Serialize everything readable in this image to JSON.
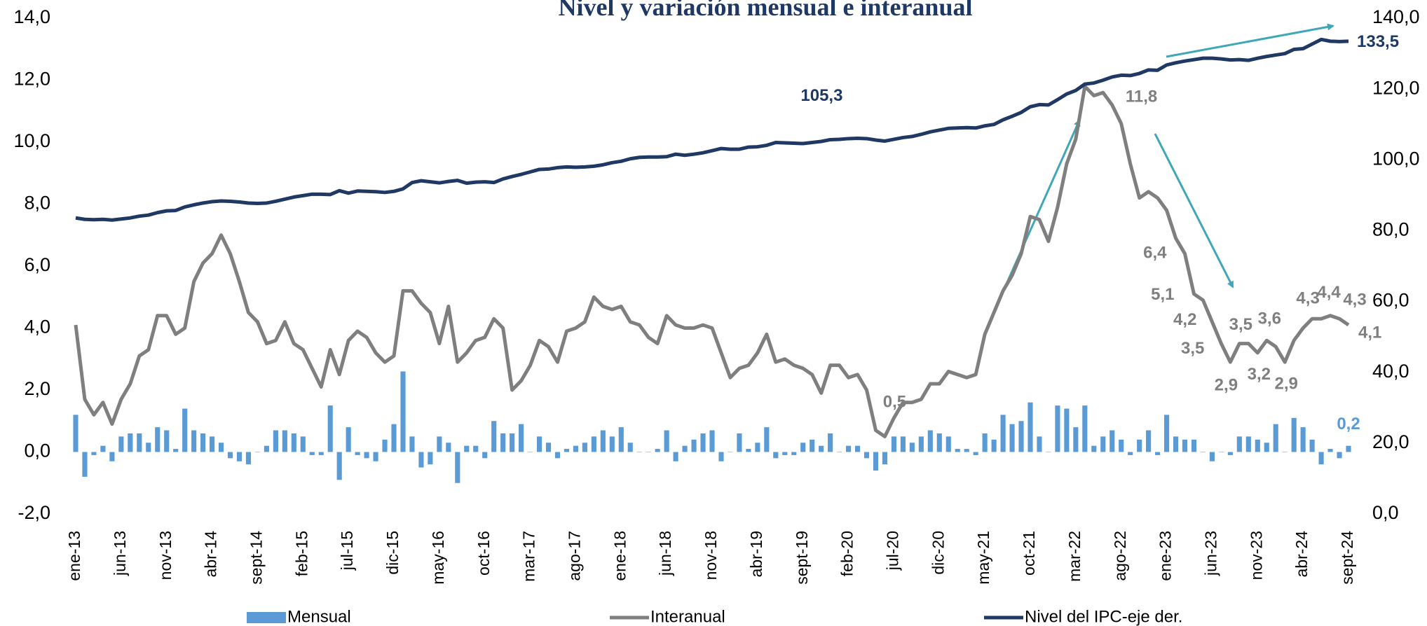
{
  "chart_data": {
    "type": "combo",
    "title": "Nivel y variación mensual e interanual",
    "categories": [
      "ene-13",
      null,
      null,
      null,
      null,
      "jun-13",
      null,
      null,
      null,
      null,
      "nov-13",
      null,
      null,
      null,
      null,
      "abr-14",
      null,
      null,
      null,
      null,
      "sept-14",
      null,
      null,
      null,
      null,
      "feb-15",
      null,
      null,
      null,
      null,
      "jul-15",
      null,
      null,
      null,
      null,
      "dic-15",
      null,
      null,
      null,
      null,
      "may-16",
      null,
      null,
      null,
      null,
      "oct-16",
      null,
      null,
      null,
      null,
      "mar-17",
      null,
      null,
      null,
      null,
      "ago-17",
      null,
      null,
      null,
      null,
      "ene-18",
      null,
      null,
      null,
      null,
      "jun-18",
      null,
      null,
      null,
      null,
      "nov-18",
      null,
      null,
      null,
      null,
      "abr-19",
      null,
      null,
      null,
      null,
      "sept-19",
      null,
      null,
      null,
      null,
      "feb-20",
      null,
      null,
      null,
      null,
      "jul-20",
      null,
      null,
      null,
      null,
      "dic-20",
      null,
      null,
      null,
      null,
      "may-21",
      null,
      null,
      null,
      null,
      "oct-21",
      null,
      null,
      null,
      null,
      "mar-22",
      null,
      null,
      null,
      null,
      "ago-22",
      null,
      null,
      null,
      null,
      "ene-23",
      null,
      null,
      null,
      null,
      "jun-23",
      null,
      null,
      null,
      null,
      "nov-23",
      null,
      null,
      null,
      null,
      "abr-24",
      null,
      null,
      null,
      null,
      "sept-24"
    ],
    "series": [
      {
        "name": "Mensual",
        "type": "bar",
        "color": "#5b9bd5",
        "values": [
          1.2,
          -0.8,
          -0.1,
          0.2,
          -0.3,
          0.5,
          0.6,
          0.6,
          0.3,
          0.8,
          0.7,
          0.1,
          1.4,
          0.7,
          0.6,
          0.5,
          0.3,
          -0.2,
          -0.3,
          -0.4,
          0.0,
          0.2,
          0.7,
          0.7,
          0.6,
          0.5,
          -0.1,
          -0.1,
          1.5,
          -0.9,
          0.8,
          -0.1,
          -0.2,
          -0.3,
          0.4,
          0.9,
          2.6,
          0.5,
          -0.5,
          -0.4,
          0.5,
          0.3,
          -1.0,
          0.2,
          0.2,
          -0.2,
          1.0,
          0.6,
          0.6,
          0.9,
          0.0,
          0.5,
          0.3,
          -0.2,
          0.1,
          0.2,
          0.3,
          0.5,
          0.7,
          0.5,
          0.8,
          0.3,
          0.0,
          0.0,
          0.1,
          0.7,
          -0.3,
          0.2,
          0.4,
          0.6,
          0.7,
          -0.3,
          0.0,
          0.6,
          0.1,
          0.3,
          0.8,
          -0.2,
          -0.1,
          -0.1,
          0.3,
          0.4,
          0.2,
          0.6,
          0.0,
          0.2,
          0.2,
          -0.2,
          -0.6,
          -0.4,
          0.5,
          0.5,
          0.3,
          0.5,
          0.7,
          0.6,
          0.5,
          0.1,
          0.1,
          -0.1,
          0.6,
          0.4,
          1.2,
          0.9,
          1.0,
          1.6,
          0.5,
          0.0,
          1.5,
          1.4,
          0.8,
          1.5,
          0.2,
          0.5,
          0.7,
          0.4,
          -0.1,
          0.4,
          0.7,
          -0.1,
          1.2,
          0.5,
          0.4,
          0.4,
          0.0,
          -0.3,
          0.0,
          -0.1,
          0.5,
          0.5,
          0.4,
          0.3,
          0.9,
          0.0,
          1.1,
          0.8,
          0.4,
          -0.4,
          0.1,
          -0.2,
          0.2
        ],
        "value_labels": [
          null,
          null,
          null,
          null,
          null,
          null,
          null,
          null,
          null,
          null,
          null,
          null,
          null,
          null,
          null,
          null,
          null,
          null,
          null,
          null,
          null,
          null,
          null,
          null,
          null,
          null,
          null,
          null,
          null,
          null,
          null,
          null,
          null,
          null,
          null,
          null,
          null,
          null,
          null,
          null,
          null,
          null,
          null,
          null,
          null,
          null,
          null,
          null,
          null,
          null,
          null,
          null,
          null,
          null,
          null,
          null,
          null,
          null,
          null,
          null,
          null,
          null,
          null,
          null,
          null,
          null,
          null,
          null,
          null,
          null,
          null,
          null,
          null,
          null,
          null,
          null,
          null,
          null,
          null,
          null,
          null,
          null,
          null,
          null,
          null,
          null,
          null,
          null,
          null,
          null,
          null,
          null,
          null,
          null,
          null,
          null,
          null,
          null,
          null,
          null,
          null,
          null,
          null,
          null,
          null,
          null,
          null,
          null,
          null,
          null,
          null,
          null,
          null,
          null,
          null,
          null,
          null,
          null,
          null,
          null,
          null,
          null,
          null,
          null,
          null,
          null,
          null,
          null,
          null,
          null,
          null,
          null,
          null,
          null,
          null,
          null,
          null,
          null,
          null,
          null,
          "0,2"
        ]
      },
      {
        "name": "Interanual",
        "type": "line",
        "color": "#7f7f7f",
        "values": [
          4.1,
          1.7,
          1.2,
          1.6,
          0.9,
          1.7,
          2.2,
          3.1,
          3.3,
          4.4,
          4.4,
          3.8,
          4.0,
          5.5,
          6.1,
          6.4,
          7.0,
          6.4,
          5.5,
          4.5,
          4.2,
          3.5,
          3.6,
          4.2,
          3.5,
          3.3,
          2.7,
          2.1,
          3.3,
          2.5,
          3.6,
          3.9,
          3.7,
          3.2,
          2.9,
          3.1,
          5.2,
          5.2,
          4.8,
          4.5,
          3.5,
          4.7,
          2.9,
          3.2,
          3.6,
          3.7,
          4.3,
          4.0,
          2.0,
          2.3,
          2.8,
          3.6,
          3.4,
          2.9,
          3.9,
          4.0,
          4.2,
          5.0,
          4.7,
          4.6,
          4.7,
          4.2,
          4.1,
          3.7,
          3.5,
          4.4,
          4.1,
          4.0,
          4.0,
          4.1,
          4.0,
          3.2,
          2.4,
          2.7,
          2.8,
          3.2,
          3.8,
          2.9,
          3.0,
          2.8,
          2.7,
          2.5,
          1.9,
          2.8,
          2.8,
          2.4,
          2.5,
          2.0,
          0.7,
          0.5,
          1.1,
          1.6,
          1.6,
          1.7,
          2.2,
          2.2,
          2.6,
          2.5,
          2.4,
          2.5,
          3.8,
          4.5,
          5.2,
          5.7,
          6.4,
          7.6,
          7.5,
          6.8,
          7.9,
          9.3,
          10.1,
          11.8,
          11.5,
          11.6,
          11.2,
          10.6,
          9.3,
          8.2,
          8.4,
          8.2,
          7.8,
          6.9,
          6.4,
          5.1,
          4.9,
          4.2,
          3.5,
          2.9,
          3.5,
          3.5,
          3.2,
          3.6,
          3.4,
          2.9,
          3.6,
          4.0,
          4.3,
          4.3,
          4.4,
          4.3,
          4.1
        ],
        "value_labels": [
          null,
          null,
          null,
          null,
          null,
          null,
          null,
          null,
          null,
          null,
          null,
          null,
          null,
          null,
          null,
          null,
          null,
          null,
          null,
          null,
          null,
          null,
          null,
          null,
          null,
          null,
          null,
          null,
          null,
          null,
          null,
          null,
          null,
          null,
          null,
          null,
          null,
          null,
          null,
          null,
          null,
          null,
          null,
          null,
          null,
          null,
          null,
          null,
          null,
          null,
          null,
          null,
          null,
          null,
          null,
          null,
          null,
          null,
          null,
          null,
          null,
          null,
          null,
          null,
          null,
          null,
          null,
          null,
          null,
          null,
          null,
          null,
          null,
          null,
          null,
          null,
          null,
          null,
          null,
          null,
          null,
          null,
          null,
          null,
          null,
          null,
          null,
          null,
          null,
          "0,5",
          null,
          null,
          null,
          null,
          null,
          null,
          null,
          null,
          null,
          null,
          null,
          null,
          null,
          null,
          null,
          null,
          null,
          null,
          null,
          null,
          null,
          "11,8",
          null,
          null,
          null,
          null,
          null,
          null,
          null,
          null,
          null,
          null,
          "6,4",
          "5,1",
          null,
          "4,2",
          "3,5",
          "2,9",
          "3,5",
          null,
          "3,2",
          "3,6",
          null,
          "2,9",
          null,
          null,
          "4,3",
          null,
          "4,4",
          "4,3",
          "4,1"
        ]
      },
      {
        "name": "Nivel del IPC-eje der.",
        "type": "line",
        "axis": "y2",
        "color": "#1f3864",
        "values": [
          83.6,
          83.2,
          83.1,
          83.2,
          83.0,
          83.3,
          83.6,
          84.1,
          84.4,
          85.1,
          85.6,
          85.7,
          86.7,
          87.3,
          87.8,
          88.2,
          88.4,
          88.3,
          88.1,
          87.8,
          87.7,
          87.8,
          88.3,
          88.9,
          89.5,
          89.9,
          90.3,
          90.3,
          90.2,
          91.3,
          90.6,
          91.2,
          91.1,
          91.0,
          90.8,
          91.1,
          91.8,
          93.6,
          94.1,
          93.8,
          93.5,
          93.9,
          94.2,
          93.4,
          93.7,
          93.8,
          93.6,
          94.6,
          95.3,
          95.9,
          96.6,
          97.3,
          97.4,
          97.8,
          98.0,
          97.9,
          98.0,
          98.2,
          98.6,
          99.2,
          99.6,
          100.3,
          100.7,
          100.8,
          100.8,
          100.9,
          101.6,
          101.3,
          101.6,
          102.0,
          102.6,
          103.2,
          103.0,
          103.0,
          103.6,
          103.7,
          104.1,
          104.9,
          104.8,
          104.7,
          104.6,
          104.9,
          105.2,
          105.7,
          105.8,
          106.0,
          106.1,
          106.0,
          105.6,
          105.3,
          105.8,
          106.3,
          106.6,
          107.2,
          107.9,
          108.4,
          108.9,
          109.0,
          109.1,
          109.0,
          109.6,
          110.0,
          111.3,
          112.3,
          113.4,
          115.0,
          115.6,
          115.5,
          117.0,
          118.6,
          119.6,
          121.4,
          121.7,
          122.5,
          123.4,
          123.9,
          123.8,
          124.4,
          125.4,
          125.3,
          126.8,
          127.4,
          127.9,
          128.3,
          128.7,
          128.7,
          128.5,
          128.2,
          128.3,
          128.1,
          128.7,
          129.2,
          129.6,
          130.0,
          131.2,
          131.4,
          132.7,
          134.0,
          133.5,
          133.4,
          133.5
        ],
        "value_labels": [
          null,
          null,
          null,
          null,
          null,
          null,
          null,
          null,
          null,
          null,
          null,
          null,
          null,
          null,
          null,
          null,
          null,
          null,
          null,
          null,
          null,
          null,
          null,
          null,
          null,
          null,
          null,
          null,
          null,
          null,
          null,
          null,
          null,
          null,
          null,
          null,
          null,
          null,
          null,
          null,
          null,
          null,
          null,
          null,
          null,
          null,
          null,
          null,
          null,
          null,
          null,
          null,
          null,
          null,
          null,
          null,
          null,
          null,
          null,
          null,
          null,
          null,
          null,
          null,
          null,
          null,
          null,
          null,
          null,
          null,
          null,
          null,
          null,
          null,
          null,
          null,
          null,
          null,
          null,
          null,
          null,
          null,
          null,
          null,
          null,
          null,
          null,
          null,
          null,
          "105,3",
          null,
          null,
          null,
          null,
          null,
          null,
          null,
          null,
          null,
          null,
          null,
          null,
          null,
          null,
          null,
          null,
          null,
          null,
          null,
          null,
          null,
          null,
          null,
          null,
          null,
          null,
          null,
          null,
          null,
          null,
          null,
          null,
          null,
          null,
          null,
          null,
          null,
          null,
          null,
          null,
          null,
          null,
          null,
          null,
          null,
          null,
          null,
          null,
          null,
          null,
          "133,5"
        ]
      }
    ],
    "ylim": [
      -2,
      14
    ],
    "yticks": [
      {
        "value": -2,
        "label": "-2,0"
      },
      {
        "value": 0,
        "label": "0,0"
      },
      {
        "value": 2,
        "label": "2,0"
      },
      {
        "value": 4,
        "label": "4,0"
      },
      {
        "value": 6,
        "label": "6,0"
      },
      {
        "value": 8,
        "label": "8,0"
      },
      {
        "value": 10,
        "label": "10,0"
      },
      {
        "value": 12,
        "label": "12,0"
      },
      {
        "value": 14,
        "label": "14,0"
      }
    ],
    "y2lim": [
      0,
      140
    ],
    "y2ticks": [
      {
        "value": 0,
        "label": "0,0"
      },
      {
        "value": 20,
        "label": "20,0"
      },
      {
        "value": 40,
        "label": "40,0"
      },
      {
        "value": 60,
        "label": "60,0"
      },
      {
        "value": 80,
        "label": "80,0"
      },
      {
        "value": 100,
        "label": "100,0"
      },
      {
        "value": 120,
        "label": "120,0"
      },
      {
        "value": 140,
        "label": "140,0"
      }
    ],
    "legend": "bottom"
  }
}
